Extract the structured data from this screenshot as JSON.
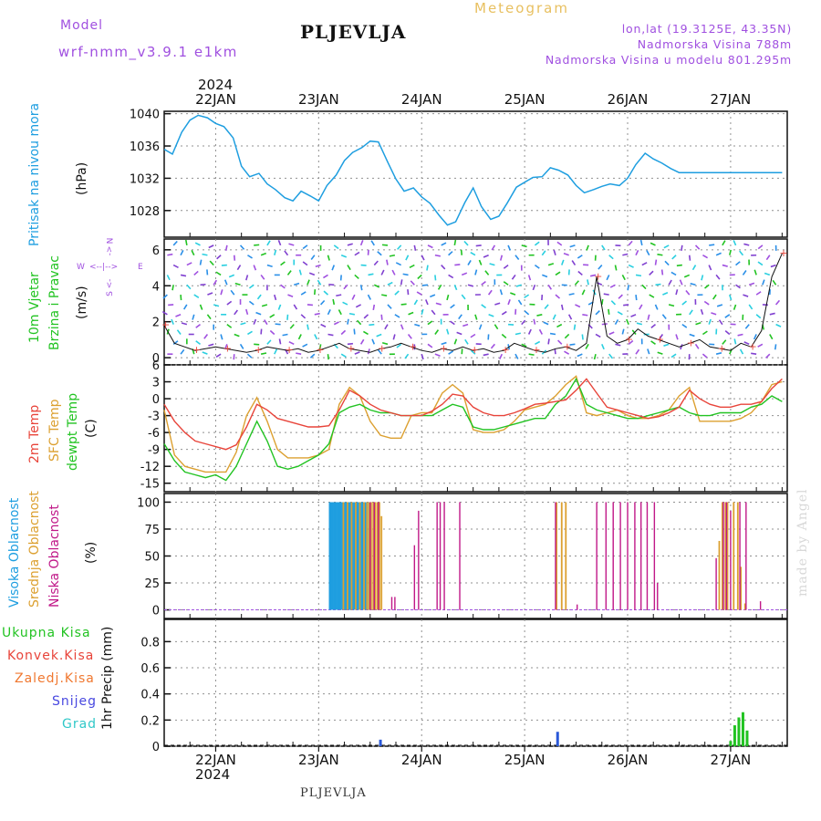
{
  "header": {
    "model_label": "Model",
    "model_name": "wrf-nmm_v3.9.1 e1km",
    "location": "PLJEVLJA",
    "meteogram_label": "Meteogram",
    "coords": "lon,lat (19.3125E, 43.35N)",
    "elevation": "Nadmorska Visina 788m",
    "model_elevation": "Nadmorska Visina u modelu 801.295m",
    "year_top": "2024",
    "year_bottom": "2024",
    "footer_location": "PLJEVLJA",
    "watermark": "made by Angel"
  },
  "colors": {
    "pressure": "#1e9ee0",
    "temp2m": "#e8443a",
    "sfc": "#dca030",
    "dewpt": "#22c322",
    "high_cloud": "#1e9ee0",
    "mid_cloud": "#dca030",
    "low_cloud": "#c01888",
    "purple": "#a050e0",
    "green": "#22c322",
    "red": "#e8443a",
    "orange": "#f07830",
    "blue": "#4848e0",
    "cyan": "#30c8c8"
  },
  "chart_data": [
    {
      "type": "line",
      "panel": "pressure",
      "ylabel_main": "Pritisak na nivou mora",
      "ylabel_unit": "(hPa)",
      "yticks": [
        "1028",
        "1032",
        "1036",
        "1040"
      ],
      "ylim": [
        1024.7,
        1040.3
      ],
      "x_categories": [
        "22JAN",
        "23JAN",
        "24JAN",
        "25JAN",
        "26JAN",
        "27JAN"
      ],
      "x_day_range": [
        -0.5,
        5.55
      ],
      "series": [
        {
          "x": [
            -0.5,
            -0.42,
            -0.33,
            -0.25,
            -0.17,
            -0.08,
            0.0,
            0.08,
            0.17,
            0.25,
            0.33,
            0.42,
            0.5,
            0.58,
            0.67,
            0.75,
            0.83,
            0.92,
            1.0,
            1.08,
            1.17,
            1.25,
            1.33,
            1.42,
            1.5,
            1.58,
            1.67,
            1.75,
            1.83,
            1.92,
            2.0,
            2.08,
            2.17,
            2.25,
            2.33,
            2.42,
            2.5,
            2.58,
            2.67,
            2.75,
            2.83,
            2.92,
            3.0,
            3.08,
            3.17,
            3.25,
            3.33,
            3.42,
            3.5,
            3.58,
            3.67,
            3.75,
            3.83,
            3.92,
            4.0,
            4.08,
            4.17,
            4.25,
            4.33,
            4.42,
            4.5,
            4.58,
            4.67,
            4.75,
            4.83,
            4.92,
            5.0,
            5.08,
            5.17,
            5.25,
            5.33,
            5.42,
            5.5
          ],
          "values": [
            1035.6,
            1035.0,
            1037.7,
            1039.2,
            1039.8,
            1039.5,
            1038.8,
            1038.4,
            1037.0,
            1033.5,
            1032.2,
            1032.6,
            1031.3,
            1030.6,
            1029.6,
            1029.2,
            1030.4,
            1029.8,
            1029.2,
            1031.1,
            1032.4,
            1034.2,
            1035.2,
            1035.8,
            1036.6,
            1036.5,
            1034.0,
            1031.9,
            1030.4,
            1030.8,
            1029.7,
            1028.9,
            1027.4,
            1026.2,
            1026.6,
            1029.0,
            1030.8,
            1028.5,
            1026.9,
            1027.3,
            1028.9,
            1030.9,
            1031.5,
            1032.1,
            1032.2,
            1033.3,
            1033.0,
            1032.4,
            1031.1,
            1030.2,
            1030.6,
            1031.0,
            1031.3,
            1031.1,
            1032.0,
            1033.7,
            1035.1,
            1034.4,
            1033.9,
            1033.2,
            1032.7,
            1032.7,
            1032.7,
            1032.7,
            1032.7,
            1032.7,
            1032.7,
            1032.7,
            1032.7,
            1032.7,
            1032.7,
            1032.7,
            1032.7
          ]
        }
      ]
    },
    {
      "type": "scatter",
      "panel": "wind",
      "ylabel_main": "10m Vjetar",
      "ylabel_sub": "Brzina i Pravac",
      "ylabel_unit": "(m/s)",
      "compass": {
        "n": "N",
        "e": "E",
        "s": "S",
        "w": "W"
      },
      "yticks": [
        "0",
        "2",
        "4",
        "6"
      ],
      "ylim": [
        -0.4,
        6.6
      ],
      "x_categories": [
        "22JAN",
        "23JAN",
        "24JAN",
        "25JAN",
        "26JAN",
        "27JAN"
      ],
      "x_day_range": [
        -0.5,
        5.55
      ],
      "series": [
        {
          "x": [
            -0.5,
            -0.4,
            -0.3,
            -0.2,
            -0.1,
            0.0,
            0.1,
            0.2,
            0.3,
            0.4,
            0.5,
            0.6,
            0.7,
            0.8,
            0.9,
            1.0,
            1.1,
            1.2,
            1.3,
            1.4,
            1.5,
            1.6,
            1.7,
            1.8,
            1.9,
            2.0,
            2.1,
            2.2,
            2.3,
            2.4,
            2.5,
            2.6,
            2.7,
            2.8,
            2.9,
            3.0,
            3.1,
            3.2,
            3.3,
            3.4,
            3.5,
            3.6,
            3.7,
            3.8,
            3.9,
            4.0,
            4.1,
            4.2,
            4.3,
            4.4,
            4.5,
            4.6,
            4.7,
            4.8,
            4.9,
            5.0,
            5.1,
            5.2,
            5.3,
            5.4,
            5.5
          ],
          "values": [
            1.8,
            0.8,
            0.6,
            0.4,
            0.5,
            0.6,
            0.5,
            0.4,
            0.3,
            0.4,
            0.6,
            0.5,
            0.4,
            0.5,
            0.3,
            0.4,
            0.6,
            0.8,
            0.5,
            0.4,
            0.3,
            0.5,
            0.6,
            0.8,
            0.6,
            0.4,
            0.3,
            0.5,
            0.4,
            0.6,
            0.4,
            0.5,
            0.3,
            0.4,
            0.8,
            0.6,
            0.4,
            0.3,
            0.5,
            0.6,
            0.4,
            0.8,
            4.5,
            1.2,
            0.8,
            1.0,
            1.6,
            1.2,
            1.0,
            0.8,
            0.6,
            0.8,
            1.0,
            0.6,
            0.5,
            0.4,
            0.8,
            0.6,
            1.5,
            4.5,
            5.8
          ]
        }
      ]
    },
    {
      "type": "line",
      "panel": "temperature",
      "ylabel_main": "2m Temp",
      "ylabel_sub": "SFC Temp",
      "ylabel_sub2": "dewpt Temp",
      "ylabel_unit": "(C)",
      "yticks": [
        "-15",
        "-12",
        "-9",
        "-6",
        "-3",
        "0",
        "3",
        "6"
      ],
      "ylim": [
        -16.5,
        6.0
      ],
      "x_categories": [
        "22JAN",
        "23JAN",
        "24JAN",
        "25JAN",
        "26JAN",
        "27JAN"
      ],
      "x_day_range": [
        -0.5,
        5.55
      ],
      "series": [
        {
          "name": "2m Temp",
          "x": [
            -0.5,
            -0.4,
            -0.3,
            -0.2,
            -0.1,
            0.0,
            0.1,
            0.2,
            0.3,
            0.4,
            0.5,
            0.6,
            0.7,
            0.8,
            0.9,
            1.0,
            1.1,
            1.2,
            1.3,
            1.4,
            1.5,
            1.6,
            1.7,
            1.8,
            1.9,
            2.0,
            2.1,
            2.2,
            2.3,
            2.4,
            2.5,
            2.6,
            2.7,
            2.8,
            2.9,
            3.0,
            3.1,
            3.2,
            3.3,
            3.4,
            3.5,
            3.6,
            3.7,
            3.8,
            3.9,
            4.0,
            4.1,
            4.2,
            4.3,
            4.4,
            4.5,
            4.6,
            4.7,
            4.8,
            4.9,
            5.0,
            5.1,
            5.2,
            5.3,
            5.4,
            5.5
          ],
          "values": [
            -1.0,
            -4.0,
            -6.0,
            -7.5,
            -8.0,
            -8.5,
            -9.0,
            -8.2,
            -5.0,
            -1.0,
            -2.0,
            -3.5,
            -4.0,
            -4.5,
            -5.0,
            -5.0,
            -4.8,
            -2.0,
            1.5,
            0.5,
            -1.0,
            -2.0,
            -2.5,
            -3.0,
            -3.0,
            -3.0,
            -2.2,
            -1.0,
            0.8,
            0.5,
            -1.5,
            -2.5,
            -3.0,
            -3.0,
            -2.5,
            -1.8,
            -1.0,
            -0.8,
            -0.5,
            -0.2,
            1.5,
            3.5,
            1.0,
            -1.5,
            -2.0,
            -2.5,
            -3.0,
            -3.5,
            -3.2,
            -2.5,
            -1.5,
            1.5,
            0.0,
            -1.0,
            -1.5,
            -1.5,
            -1.0,
            -1.0,
            -0.5,
            1.8,
            3.5
          ]
        },
        {
          "name": "SFC Temp",
          "x": [
            -0.5,
            -0.4,
            -0.3,
            -0.2,
            -0.1,
            0.0,
            0.1,
            0.2,
            0.3,
            0.4,
            0.5,
            0.6,
            0.7,
            0.8,
            0.9,
            1.0,
            1.1,
            1.2,
            1.3,
            1.4,
            1.5,
            1.6,
            1.7,
            1.8,
            1.9,
            2.0,
            2.1,
            2.2,
            2.3,
            2.4,
            2.5,
            2.6,
            2.7,
            2.8,
            2.9,
            3.0,
            3.1,
            3.2,
            3.3,
            3.4,
            3.5,
            3.6,
            3.7,
            3.8,
            3.9,
            4.0,
            4.1,
            4.2,
            4.3,
            4.4,
            4.5,
            4.6,
            4.7,
            4.8,
            4.9,
            5.0,
            5.1,
            5.2,
            5.3,
            5.4,
            5.5
          ],
          "values": [
            -2.0,
            -10.0,
            -12.0,
            -12.5,
            -13.0,
            -13.0,
            -13.0,
            -9.5,
            -3.0,
            0.2,
            -4.0,
            -9.0,
            -10.5,
            -10.5,
            -10.5,
            -10.0,
            -9.0,
            -1.0,
            2.0,
            0.5,
            -4.0,
            -6.5,
            -7.0,
            -7.0,
            -3.0,
            -2.5,
            -2.5,
            1.0,
            2.5,
            1.0,
            -5.5,
            -6.0,
            -6.0,
            -5.5,
            -4.0,
            -2.0,
            -1.5,
            -1.0,
            0.5,
            2.5,
            4.0,
            -2.5,
            -3.0,
            -2.5,
            -2.0,
            -3.0,
            -3.5,
            -3.5,
            -3.0,
            -2.0,
            0.5,
            2.0,
            -4.0,
            -4.0,
            -4.0,
            -4.0,
            -3.5,
            -2.5,
            -0.5,
            2.5,
            3.0
          ]
        },
        {
          "name": "dewpt Temp",
          "x": [
            -0.5,
            -0.4,
            -0.3,
            -0.2,
            -0.1,
            0.0,
            0.1,
            0.2,
            0.3,
            0.4,
            0.5,
            0.6,
            0.7,
            0.8,
            0.9,
            1.0,
            1.1,
            1.2,
            1.3,
            1.4,
            1.5,
            1.6,
            1.7,
            1.8,
            1.9,
            2.0,
            2.1,
            2.2,
            2.3,
            2.4,
            2.5,
            2.6,
            2.7,
            2.8,
            2.9,
            3.0,
            3.1,
            3.2,
            3.3,
            3.4,
            3.5,
            3.6,
            3.7,
            3.8,
            3.9,
            4.0,
            4.1,
            4.2,
            4.3,
            4.4,
            4.5,
            4.6,
            4.7,
            4.8,
            4.9,
            5.0,
            5.1,
            5.2,
            5.3,
            5.4,
            5.5
          ],
          "values": [
            -8.0,
            -11.0,
            -13.0,
            -13.5,
            -14.0,
            -13.5,
            -14.5,
            -12.0,
            -8.0,
            -4.0,
            -7.5,
            -12.0,
            -12.5,
            -12.0,
            -11.0,
            -10.0,
            -8.0,
            -2.5,
            -1.5,
            -1.0,
            -2.0,
            -2.5,
            -2.5,
            -3.0,
            -3.0,
            -3.0,
            -3.0,
            -2.0,
            -1.0,
            -1.5,
            -5.0,
            -5.5,
            -5.5,
            -5.0,
            -4.5,
            -4.0,
            -3.5,
            -3.5,
            -1.0,
            0.5,
            3.5,
            -1.0,
            -2.0,
            -2.5,
            -3.0,
            -3.5,
            -3.5,
            -3.0,
            -2.5,
            -2.0,
            -1.5,
            -2.5,
            -3.0,
            -3.0,
            -2.5,
            -2.5,
            -2.5,
            -1.5,
            -1.0,
            0.5,
            -0.5
          ]
        }
      ]
    },
    {
      "type": "bar",
      "panel": "clouds",
      "ylabel_main": "Visoka Oblacnost",
      "ylabel_sub": "Srednja Oblacnost",
      "ylabel_sub2": "Niska Oblacnost",
      "ylabel_unit": "(%)",
      "yticks": [
        "0",
        "25",
        "50",
        "75",
        "100"
      ],
      "ylim": [
        -8,
        108
      ],
      "x_categories": [
        "22JAN",
        "23JAN",
        "24JAN",
        "25JAN",
        "26JAN",
        "27JAN"
      ],
      "x_day_range": [
        -0.5,
        5.55
      ],
      "series": [
        {
          "name": "Visoka Oblacnost",
          "x": [
            1.11,
            1.13,
            1.15,
            1.17,
            1.19,
            1.21,
            1.23,
            1.25,
            1.27,
            1.29,
            1.31,
            1.33,
            1.35,
            1.37,
            1.39,
            1.41,
            1.43,
            1.45,
            1.47
          ],
          "values": [
            100,
            100,
            100,
            100,
            100,
            100,
            100,
            100,
            100,
            100,
            100,
            100,
            100,
            100,
            100,
            100,
            100,
            100,
            100
          ]
        },
        {
          "name": "Srednja Oblacnost",
          "x": [
            1.24,
            1.28,
            1.32,
            1.36,
            1.4,
            1.44,
            1.47,
            1.49,
            1.51,
            1.53,
            1.55,
            1.57,
            1.59,
            1.61,
            3.31,
            3.36,
            3.4,
            4.89,
            4.92,
            4.95,
            4.97,
            5.03,
            5.07,
            5.1,
            5.14
          ],
          "values": [
            100,
            100,
            100,
            100,
            100,
            100,
            100,
            100,
            100,
            100,
            100,
            100,
            100,
            87,
            100,
            100,
            100,
            64,
            100,
            100,
            100,
            100,
            100,
            40,
            6
          ]
        },
        {
          "name": "Niska Oblacnost",
          "x": [
            1.5,
            1.54,
            1.58,
            1.71,
            1.74,
            1.93,
            1.97,
            2.15,
            2.18,
            2.22,
            2.37,
            3.3,
            3.51,
            3.7,
            3.79,
            3.86,
            3.93,
            4.0,
            4.07,
            4.13,
            4.19,
            4.26,
            4.29,
            4.86,
            4.93,
            4.96,
            5.0,
            5.09,
            5.15,
            5.29
          ],
          "values": [
            100,
            100,
            100,
            12,
            12,
            60,
            92,
            100,
            100,
            100,
            100,
            100,
            5,
            100,
            100,
            100,
            100,
            100,
            100,
            100,
            100,
            100,
            25,
            48,
            100,
            100,
            92,
            100,
            100,
            8
          ]
        }
      ]
    },
    {
      "type": "bar",
      "panel": "precip",
      "ylabel_main": "1hr Precip (mm)",
      "legend_items": [
        "Ukupna Kisa",
        "Konvek.Kisa",
        "Zaledj.Kisa",
        "Snijeg",
        "Grad"
      ],
      "yticks": [
        "0",
        "0.2",
        "0.4",
        "0.6",
        "0.8"
      ],
      "ylim": [
        0,
        0.97
      ],
      "x_categories": [
        "22JAN",
        "23JAN",
        "24JAN",
        "25JAN",
        "26JAN",
        "27JAN"
      ],
      "x_day_range": [
        -0.5,
        5.55
      ],
      "series": [
        {
          "name": "Snijeg",
          "x": [
            1.6,
            3.32
          ],
          "values": [
            0.05,
            0.11
          ]
        },
        {
          "name": "Ukupna Kisa",
          "x": [
            5.0,
            5.04,
            5.08,
            5.12,
            5.16
          ],
          "values": [
            0.04,
            0.16,
            0.22,
            0.26,
            0.12
          ]
        }
      ]
    }
  ]
}
